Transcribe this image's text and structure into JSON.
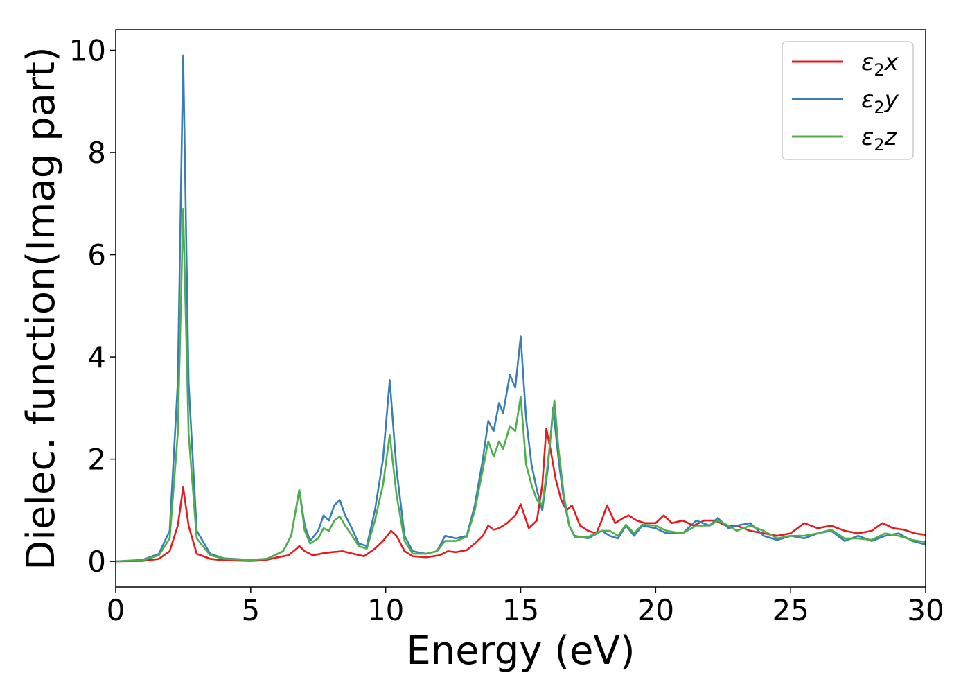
{
  "chart_data": {
    "type": "line",
    "title": "",
    "xlabel": "Energy (eV)",
    "ylabel": "Dielec. function(Imag part)",
    "xlim": [
      0,
      30
    ],
    "ylim": [
      -0.5,
      10.4
    ],
    "xticks": [
      "0",
      "5",
      "10",
      "15",
      "20",
      "25",
      "30"
    ],
    "yticks": [
      "0",
      "2",
      "4",
      "6",
      "8",
      "10"
    ],
    "grid": false,
    "legend_position": "top-right",
    "series": [
      {
        "name": "ε2x",
        "legend_base": "ε",
        "legend_sub": "2",
        "legend_suffix": "x",
        "color": "#e41a1c",
        "points": [
          [
            0,
            0
          ],
          [
            1,
            0.01
          ],
          [
            1.6,
            0.05
          ],
          [
            2,
            0.2
          ],
          [
            2.3,
            0.7
          ],
          [
            2.5,
            1.45
          ],
          [
            2.7,
            0.7
          ],
          [
            3,
            0.15
          ],
          [
            3.5,
            0.05
          ],
          [
            4,
            0.02
          ],
          [
            5,
            0.01
          ],
          [
            5.5,
            0.02
          ],
          [
            6,
            0.08
          ],
          [
            6.4,
            0.12
          ],
          [
            6.7,
            0.25
          ],
          [
            6.8,
            0.3
          ],
          [
            7,
            0.2
          ],
          [
            7.3,
            0.12
          ],
          [
            7.7,
            0.16
          ],
          [
            8,
            0.18
          ],
          [
            8.4,
            0.2
          ],
          [
            8.8,
            0.15
          ],
          [
            9.2,
            0.1
          ],
          [
            9.6,
            0.25
          ],
          [
            9.9,
            0.4
          ],
          [
            10.2,
            0.6
          ],
          [
            10.4,
            0.5
          ],
          [
            10.7,
            0.2
          ],
          [
            11,
            0.1
          ],
          [
            11.5,
            0.08
          ],
          [
            12,
            0.12
          ],
          [
            12.3,
            0.2
          ],
          [
            12.6,
            0.18
          ],
          [
            13,
            0.22
          ],
          [
            13.3,
            0.35
          ],
          [
            13.6,
            0.5
          ],
          [
            13.8,
            0.7
          ],
          [
            14,
            0.62
          ],
          [
            14.2,
            0.65
          ],
          [
            14.5,
            0.75
          ],
          [
            14.8,
            0.9
          ],
          [
            15,
            1.12
          ],
          [
            15.3,
            0.65
          ],
          [
            15.6,
            0.8
          ],
          [
            15.8,
            1.5
          ],
          [
            15.95,
            2.6
          ],
          [
            16.1,
            2.2
          ],
          [
            16.3,
            1.6
          ],
          [
            16.5,
            1.2
          ],
          [
            16.7,
            1.0
          ],
          [
            16.9,
            1.1
          ],
          [
            17.2,
            0.7
          ],
          [
            17.5,
            0.6
          ],
          [
            17.8,
            0.55
          ],
          [
            18,
            0.8
          ],
          [
            18.2,
            1.1
          ],
          [
            18.5,
            0.75
          ],
          [
            18.8,
            0.85
          ],
          [
            19,
            0.9
          ],
          [
            19.3,
            0.8
          ],
          [
            19.6,
            0.75
          ],
          [
            20,
            0.75
          ],
          [
            20.3,
            0.9
          ],
          [
            20.6,
            0.75
          ],
          [
            21,
            0.8
          ],
          [
            21.4,
            0.7
          ],
          [
            21.8,
            0.8
          ],
          [
            22.2,
            0.8
          ],
          [
            22.6,
            0.7
          ],
          [
            23,
            0.7
          ],
          [
            23.5,
            0.6
          ],
          [
            24,
            0.55
          ],
          [
            24.5,
            0.5
          ],
          [
            25,
            0.55
          ],
          [
            25.5,
            0.75
          ],
          [
            26,
            0.65
          ],
          [
            26.5,
            0.7
          ],
          [
            27,
            0.6
          ],
          [
            27.5,
            0.55
          ],
          [
            28,
            0.6
          ],
          [
            28.4,
            0.75
          ],
          [
            28.8,
            0.65
          ],
          [
            29.2,
            0.62
          ],
          [
            29.6,
            0.55
          ],
          [
            30,
            0.52
          ]
        ]
      },
      {
        "name": "ε2y",
        "legend_base": "ε",
        "legend_sub": "2",
        "legend_suffix": "y",
        "color": "#377eb8",
        "points": [
          [
            0,
            0
          ],
          [
            1,
            0.03
          ],
          [
            1.6,
            0.15
          ],
          [
            2,
            0.6
          ],
          [
            2.3,
            3.5
          ],
          [
            2.5,
            9.9
          ],
          [
            2.7,
            3.5
          ],
          [
            3,
            0.6
          ],
          [
            3.5,
            0.15
          ],
          [
            4,
            0.06
          ],
          [
            5,
            0.03
          ],
          [
            5.6,
            0.05
          ],
          [
            6.2,
            0.2
          ],
          [
            6.5,
            0.5
          ],
          [
            6.8,
            1.4
          ],
          [
            7,
            0.7
          ],
          [
            7.2,
            0.4
          ],
          [
            7.5,
            0.6
          ],
          [
            7.7,
            0.9
          ],
          [
            7.9,
            0.8
          ],
          [
            8.1,
            1.1
          ],
          [
            8.3,
            1.2
          ],
          [
            8.5,
            0.9
          ],
          [
            8.7,
            0.7
          ],
          [
            9,
            0.35
          ],
          [
            9.3,
            0.3
          ],
          [
            9.6,
            1.0
          ],
          [
            9.9,
            2.0
          ],
          [
            10.15,
            3.55
          ],
          [
            10.4,
            1.8
          ],
          [
            10.7,
            0.5
          ],
          [
            11,
            0.2
          ],
          [
            11.5,
            0.15
          ],
          [
            11.9,
            0.2
          ],
          [
            12.2,
            0.5
          ],
          [
            12.6,
            0.45
          ],
          [
            13,
            0.5
          ],
          [
            13.3,
            1.1
          ],
          [
            13.6,
            2.0
          ],
          [
            13.8,
            2.75
          ],
          [
            14,
            2.55
          ],
          [
            14.2,
            3.1
          ],
          [
            14.35,
            2.9
          ],
          [
            14.6,
            3.65
          ],
          [
            14.8,
            3.4
          ],
          [
            15,
            4.4
          ],
          [
            15.2,
            2.8
          ],
          [
            15.4,
            1.9
          ],
          [
            15.6,
            1.4
          ],
          [
            15.8,
            1.0
          ],
          [
            16,
            1.8
          ],
          [
            16.2,
            3.0
          ],
          [
            16.4,
            2.0
          ],
          [
            16.6,
            1.2
          ],
          [
            16.8,
            0.7
          ],
          [
            17,
            0.5
          ],
          [
            17.5,
            0.45
          ],
          [
            18,
            0.6
          ],
          [
            18.3,
            0.5
          ],
          [
            18.6,
            0.45
          ],
          [
            18.9,
            0.7
          ],
          [
            19.2,
            0.5
          ],
          [
            19.5,
            0.7
          ],
          [
            20,
            0.65
          ],
          [
            20.4,
            0.55
          ],
          [
            21,
            0.55
          ],
          [
            21.5,
            0.8
          ],
          [
            22,
            0.7
          ],
          [
            22.3,
            0.85
          ],
          [
            22.7,
            0.65
          ],
          [
            23,
            0.7
          ],
          [
            23.5,
            0.75
          ],
          [
            24,
            0.5
          ],
          [
            24.5,
            0.42
          ],
          [
            25,
            0.5
          ],
          [
            25.5,
            0.45
          ],
          [
            26,
            0.55
          ],
          [
            26.5,
            0.6
          ],
          [
            27,
            0.4
          ],
          [
            27.5,
            0.5
          ],
          [
            28,
            0.4
          ],
          [
            28.5,
            0.5
          ],
          [
            29,
            0.55
          ],
          [
            29.5,
            0.4
          ],
          [
            30,
            0.33
          ]
        ]
      },
      {
        "name": "ε2z",
        "legend_base": "ε",
        "legend_sub": "2",
        "legend_suffix": "z",
        "color": "#4daf4a",
        "points": [
          [
            0,
            0
          ],
          [
            1,
            0.02
          ],
          [
            1.6,
            0.12
          ],
          [
            2,
            0.45
          ],
          [
            2.3,
            2.5
          ],
          [
            2.5,
            6.9
          ],
          [
            2.7,
            2.5
          ],
          [
            3,
            0.45
          ],
          [
            3.5,
            0.12
          ],
          [
            4,
            0.05
          ],
          [
            5,
            0.03
          ],
          [
            5.6,
            0.05
          ],
          [
            6.2,
            0.2
          ],
          [
            6.5,
            0.5
          ],
          [
            6.8,
            1.4
          ],
          [
            7,
            0.6
          ],
          [
            7.2,
            0.35
          ],
          [
            7.5,
            0.45
          ],
          [
            7.7,
            0.65
          ],
          [
            7.9,
            0.6
          ],
          [
            8.1,
            0.8
          ],
          [
            8.3,
            0.88
          ],
          [
            8.5,
            0.7
          ],
          [
            8.7,
            0.55
          ],
          [
            9,
            0.3
          ],
          [
            9.3,
            0.25
          ],
          [
            9.6,
            0.8
          ],
          [
            9.9,
            1.5
          ],
          [
            10.15,
            2.48
          ],
          [
            10.4,
            1.3
          ],
          [
            10.7,
            0.4
          ],
          [
            11,
            0.15
          ],
          [
            11.5,
            0.15
          ],
          [
            11.9,
            0.2
          ],
          [
            12.2,
            0.4
          ],
          [
            12.6,
            0.4
          ],
          [
            13,
            0.48
          ],
          [
            13.3,
            1.0
          ],
          [
            13.6,
            1.8
          ],
          [
            13.8,
            2.35
          ],
          [
            14,
            2.05
          ],
          [
            14.2,
            2.35
          ],
          [
            14.35,
            2.2
          ],
          [
            14.6,
            2.65
          ],
          [
            14.8,
            2.55
          ],
          [
            15,
            3.22
          ],
          [
            15.2,
            1.9
          ],
          [
            15.4,
            1.5
          ],
          [
            15.6,
            1.2
          ],
          [
            15.8,
            1.1
          ],
          [
            16,
            1.9
          ],
          [
            16.25,
            3.15
          ],
          [
            16.4,
            2.2
          ],
          [
            16.6,
            1.3
          ],
          [
            16.8,
            0.7
          ],
          [
            17,
            0.48
          ],
          [
            17.5,
            0.48
          ],
          [
            18,
            0.6
          ],
          [
            18.3,
            0.6
          ],
          [
            18.6,
            0.5
          ],
          [
            18.9,
            0.72
          ],
          [
            19.2,
            0.55
          ],
          [
            19.5,
            0.72
          ],
          [
            20,
            0.7
          ],
          [
            20.4,
            0.6
          ],
          [
            21,
            0.55
          ],
          [
            21.5,
            0.7
          ],
          [
            22,
            0.7
          ],
          [
            22.3,
            0.8
          ],
          [
            22.7,
            0.7
          ],
          [
            23,
            0.6
          ],
          [
            23.5,
            0.7
          ],
          [
            24,
            0.6
          ],
          [
            24.5,
            0.45
          ],
          [
            25,
            0.5
          ],
          [
            25.5,
            0.5
          ],
          [
            26,
            0.55
          ],
          [
            26.5,
            0.62
          ],
          [
            27,
            0.45
          ],
          [
            27.5,
            0.45
          ],
          [
            28,
            0.42
          ],
          [
            28.5,
            0.55
          ],
          [
            29,
            0.5
          ],
          [
            29.5,
            0.42
          ],
          [
            30,
            0.38
          ]
        ]
      }
    ]
  }
}
